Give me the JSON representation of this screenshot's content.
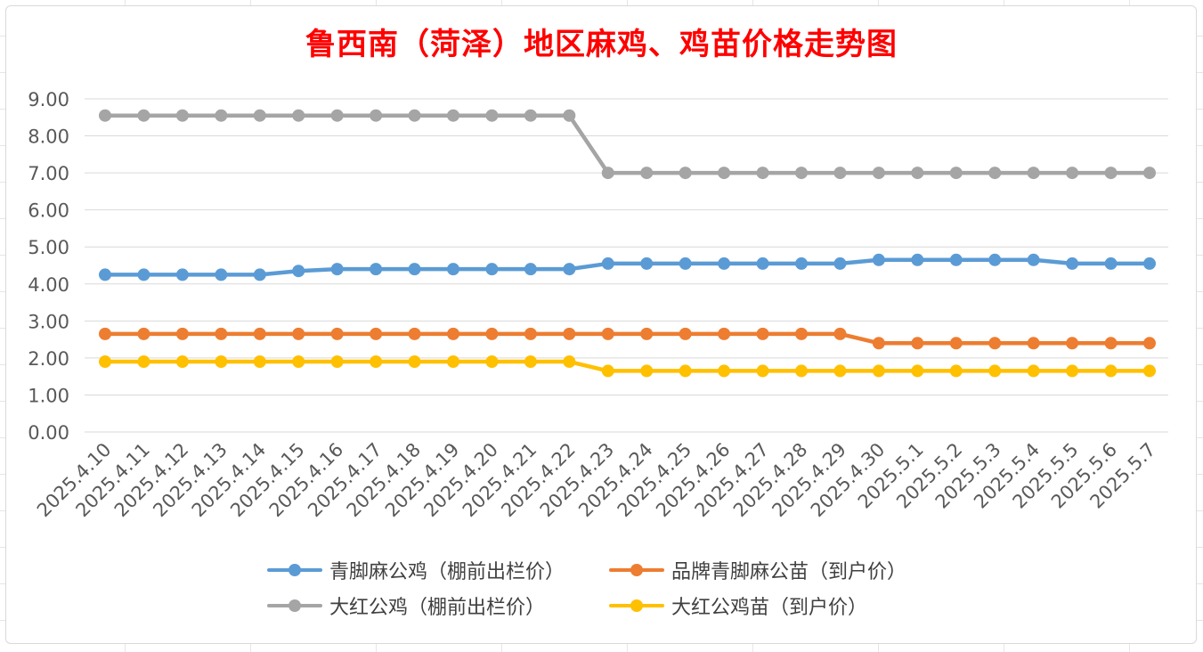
{
  "chart_data": {
    "type": "line",
    "title": "鲁西南（菏泽）地区麻鸡、鸡苗价格走势图",
    "xlabel": "",
    "ylabel": "",
    "ylim": [
      0,
      9
    ],
    "yticks": [
      "0.00",
      "1.00",
      "2.00",
      "3.00",
      "4.00",
      "5.00",
      "6.00",
      "7.00",
      "8.00",
      "9.00"
    ],
    "grid": true,
    "legend_position": "bottom",
    "categories": [
      "2025.4.10",
      "2025.4.11",
      "2025.4.12",
      "2025.4.13",
      "2025.4.14",
      "2025.4.15",
      "2025.4.16",
      "2025.4.17",
      "2025.4.18",
      "2025.4.19",
      "2025.4.20",
      "2025.4.21",
      "2025.4.22",
      "2025.4.23",
      "2025.4.24",
      "2025.4.25",
      "2025.4.26",
      "2025.4.27",
      "2025.4.28",
      "2025.4.29",
      "2025.4.30",
      "2025.5.1",
      "2025.5.2",
      "2025.5.3",
      "2025.5.4",
      "2025.5.5",
      "2025.5.6",
      "2025.5.7"
    ],
    "series": [
      {
        "name": "青脚麻公鸡（棚前出栏价）",
        "color": "#5b9bd5",
        "values": [
          4.25,
          4.25,
          4.25,
          4.25,
          4.25,
          4.35,
          4.4,
          4.4,
          4.4,
          4.4,
          4.4,
          4.4,
          4.4,
          4.55,
          4.55,
          4.55,
          4.55,
          4.55,
          4.55,
          4.55,
          4.65,
          4.65,
          4.65,
          4.65,
          4.65,
          4.55,
          4.55,
          4.55
        ]
      },
      {
        "name": "品牌青脚麻公苗（到户价）",
        "color": "#ed7d31",
        "values": [
          2.65,
          2.65,
          2.65,
          2.65,
          2.65,
          2.65,
          2.65,
          2.65,
          2.65,
          2.65,
          2.65,
          2.65,
          2.65,
          2.65,
          2.65,
          2.65,
          2.65,
          2.65,
          2.65,
          2.65,
          2.4,
          2.4,
          2.4,
          2.4,
          2.4,
          2.4,
          2.4,
          2.4
        ]
      },
      {
        "name": "大红公鸡（棚前出栏价）",
        "color": "#a5a5a5",
        "values": [
          8.55,
          8.55,
          8.55,
          8.55,
          8.55,
          8.55,
          8.55,
          8.55,
          8.55,
          8.55,
          8.55,
          8.55,
          8.55,
          7.0,
          7.0,
          7.0,
          7.0,
          7.0,
          7.0,
          7.0,
          7.0,
          7.0,
          7.0,
          7.0,
          7.0,
          7.0,
          7.0,
          7.0
        ]
      },
      {
        "name": "大红公鸡苗（到户价）",
        "color": "#ffc000",
        "values": [
          1.9,
          1.9,
          1.9,
          1.9,
          1.9,
          1.9,
          1.9,
          1.9,
          1.9,
          1.9,
          1.9,
          1.9,
          1.9,
          1.65,
          1.65,
          1.65,
          1.65,
          1.65,
          1.65,
          1.65,
          1.65,
          1.65,
          1.65,
          1.65,
          1.65,
          1.65,
          1.65,
          1.65
        ]
      }
    ],
    "legend_order": [
      0,
      1,
      2,
      3
    ]
  }
}
